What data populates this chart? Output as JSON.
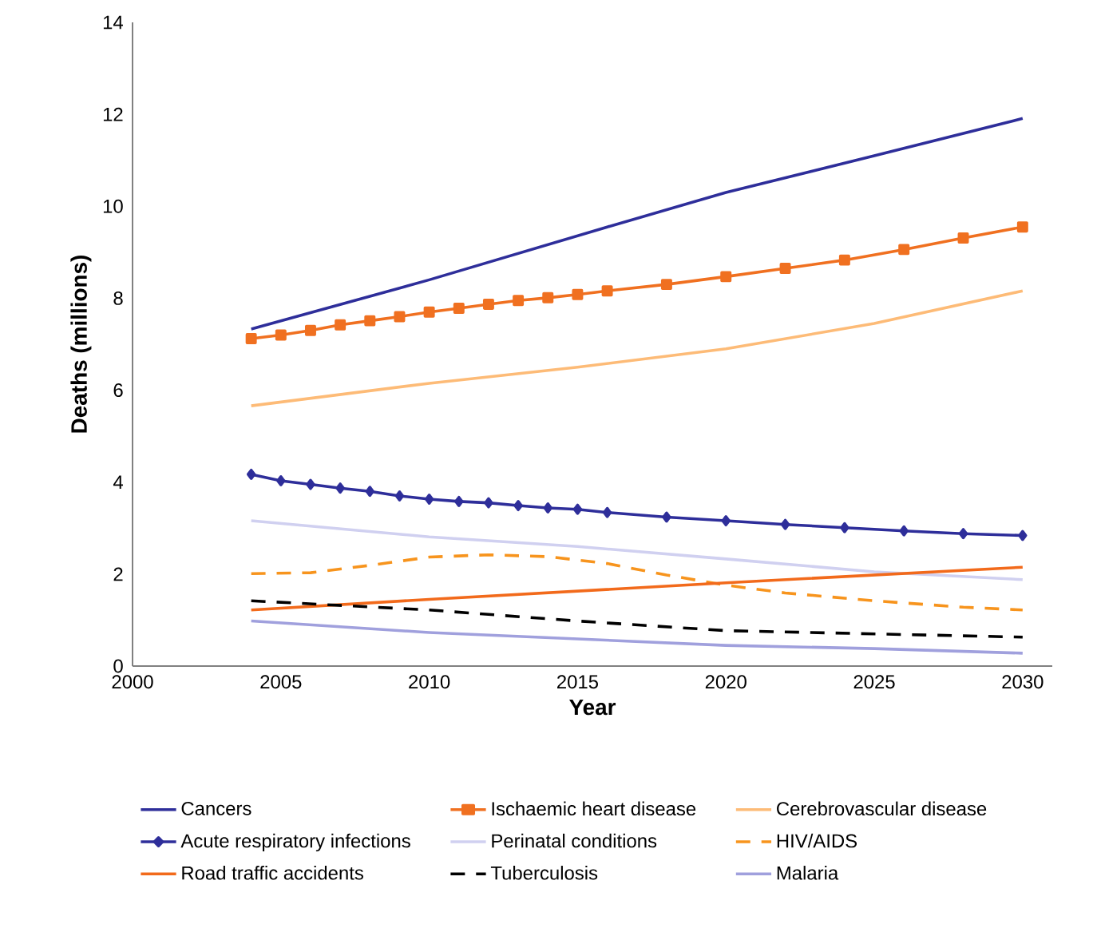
{
  "chart_data": {
    "type": "line",
    "xlabel": "Year",
    "ylabel": "Deaths (millions)",
    "xlim": [
      2000,
      2031
    ],
    "ylim": [
      0,
      14
    ],
    "xticks": [
      2000,
      2005,
      2010,
      2015,
      2020,
      2025,
      2030
    ],
    "yticks": [
      0,
      2,
      4,
      6,
      8,
      10,
      12,
      14
    ],
    "grid": false,
    "legend": "bottom",
    "series": [
      {
        "name": "Cancers",
        "color": "#2e2e9a",
        "x": [
          2004,
          2010,
          2016,
          2020,
          2025,
          2030
        ],
        "values": [
          7.33,
          8.4,
          9.55,
          10.3,
          11.1,
          11.91
        ]
      },
      {
        "name": "Ischaemic heart disease",
        "color": "#f07020",
        "marker": "square",
        "x": [
          2004,
          2005,
          2006,
          2007,
          2008,
          2009,
          2010,
          2011,
          2012,
          2013,
          2014,
          2015,
          2016,
          2018,
          2020,
          2022,
          2024,
          2026,
          2028,
          2030
        ],
        "values": [
          7.12,
          7.2,
          7.3,
          7.42,
          7.51,
          7.6,
          7.7,
          7.78,
          7.87,
          7.95,
          8.01,
          8.08,
          8.16,
          8.3,
          8.47,
          8.65,
          8.83,
          9.06,
          9.31,
          9.55
        ]
      },
      {
        "name": "Cerebrovascular disease",
        "color": "#fdbb77",
        "x": [
          2004,
          2010,
          2015,
          2020,
          2025,
          2030
        ],
        "values": [
          5.66,
          6.15,
          6.5,
          6.9,
          7.45,
          8.16
        ]
      },
      {
        "name": "Acute respiratory infections",
        "color": "#2e2e9a",
        "marker": "diamond",
        "x": [
          2004,
          2005,
          2006,
          2007,
          2008,
          2009,
          2010,
          2011,
          2012,
          2013,
          2014,
          2015,
          2016,
          2018,
          2020,
          2022,
          2024,
          2026,
          2028,
          2030
        ],
        "values": [
          4.17,
          4.03,
          3.95,
          3.87,
          3.8,
          3.7,
          3.63,
          3.58,
          3.55,
          3.49,
          3.44,
          3.41,
          3.34,
          3.24,
          3.16,
          3.08,
          3.01,
          2.94,
          2.88,
          2.84
        ]
      },
      {
        "name": "Perinatal conditions",
        "color": "#d0d0f0",
        "x": [
          2004,
          2010,
          2015,
          2020,
          2025,
          2030
        ],
        "values": [
          3.16,
          2.81,
          2.6,
          2.33,
          2.05,
          1.88
        ]
      },
      {
        "name": "HIV/AIDS",
        "color": "#f7941d",
        "line_style": "dashed",
        "x": [
          2004,
          2006,
          2008,
          2010,
          2012,
          2014,
          2016,
          2018,
          2020,
          2022,
          2025,
          2028,
          2030
        ],
        "values": [
          2.01,
          2.03,
          2.19,
          2.37,
          2.42,
          2.38,
          2.23,
          1.98,
          1.76,
          1.59,
          1.42,
          1.28,
          1.22
        ]
      },
      {
        "name": "Road traffic accidents",
        "color": "#f26a1b",
        "x": [
          2004,
          2010,
          2020,
          2030
        ],
        "values": [
          1.22,
          1.45,
          1.81,
          2.15
        ]
      },
      {
        "name": "Tuberculosis",
        "color": "#000000",
        "line_style": "dashed",
        "x": [
          2004,
          2010,
          2015,
          2020,
          2025,
          2030
        ],
        "values": [
          1.42,
          1.22,
          0.98,
          0.77,
          0.7,
          0.63
        ]
      },
      {
        "name": "Malaria",
        "color": "#a0a0dd",
        "x": [
          2004,
          2010,
          2015,
          2020,
          2025,
          2030
        ],
        "values": [
          0.98,
          0.73,
          0.59,
          0.45,
          0.38,
          0.28
        ]
      }
    ]
  }
}
